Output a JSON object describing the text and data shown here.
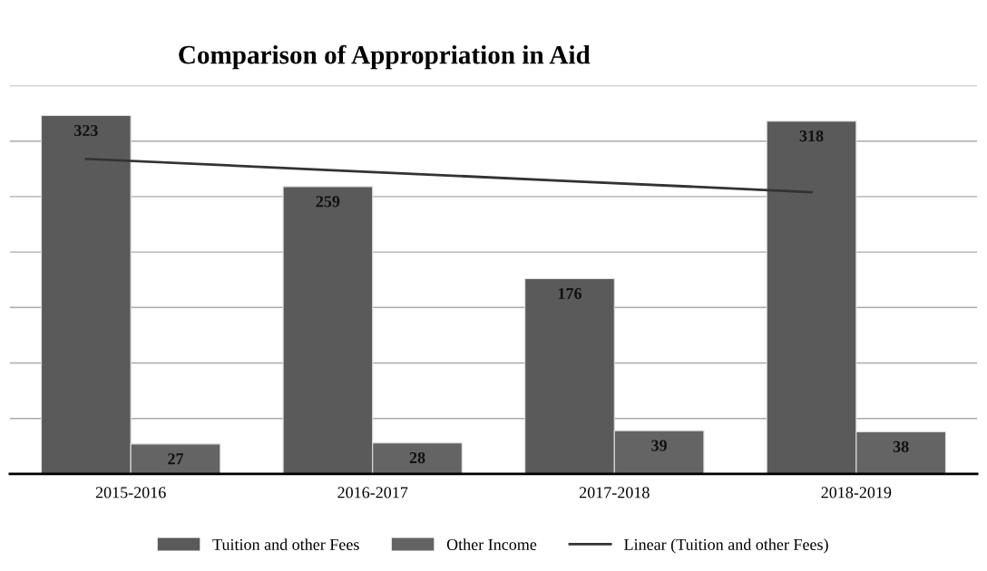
{
  "chart_data": {
    "type": "bar",
    "title": "Comparison of Appropriation in Aid",
    "categories": [
      "2015-2016",
      "2016-2017",
      "2017-2018",
      "2018-2019"
    ],
    "series": [
      {
        "name": "Tuition and other Fees",
        "color": "#5a5a5a",
        "values": [
          323,
          259,
          176,
          318
        ],
        "value_labels": [
          "323",
          "259",
          "176",
          "318"
        ]
      },
      {
        "name": "Other Income",
        "color": "#646464",
        "values": [
          27,
          28,
          39,
          38
        ],
        "value_labels": [
          "27",
          "28",
          "39",
          "38"
        ]
      },
      {
        "name": "Linear (Tuition and other Fees)",
        "type": "line",
        "color": "#333333",
        "values": [
          284,
          274,
          264,
          254
        ]
      }
    ],
    "ylim": [
      0,
      350
    ],
    "yticks": [
      {
        "value": 0,
        "label": null
      },
      {
        "value": 50,
        "label": null
      },
      {
        "value": 100,
        "label": null
      },
      {
        "value": 150,
        "label": null
      },
      {
        "value": 200,
        "label": null
      },
      {
        "value": 250,
        "label": null
      },
      {
        "value": 300,
        "label": null
      },
      {
        "value": 350,
        "label": null
      }
    ],
    "tick_labels": "x",
    "grid": "y",
    "legend": "bottom"
  }
}
